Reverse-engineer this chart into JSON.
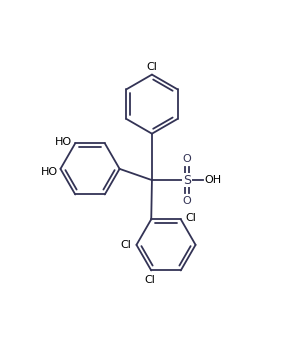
{
  "bg_color": "#ffffff",
  "line_color": "#333355",
  "text_color": "#000000",
  "label_color_cl": "#000000",
  "label_color_ho": "#000000",
  "label_color_s": "#333355",
  "label_color_oh": "#000000",
  "figsize": [
    2.87,
    3.49
  ],
  "dpi": 100,
  "xlim": [
    0,
    10
  ],
  "ylim": [
    0,
    12
  ]
}
